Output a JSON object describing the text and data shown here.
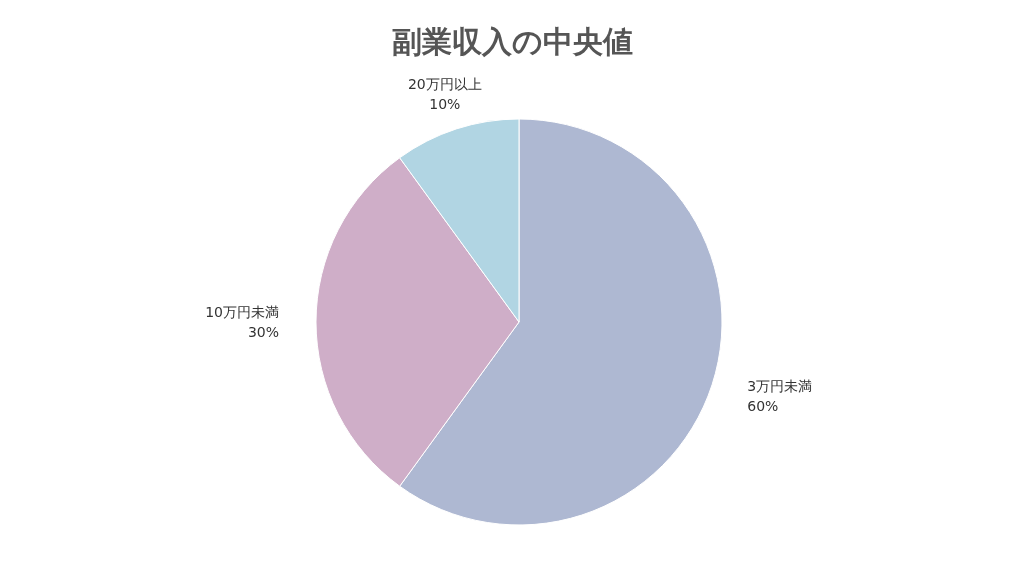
{
  "chart_data": {
    "type": "pie",
    "title": "副業収入の中央値",
    "categories": [
      "3万円未満",
      "10万円未満",
      "20万円以上"
    ],
    "values": [
      60,
      30,
      10
    ],
    "colors": [
      "#aeb8d2",
      "#cfaec8",
      "#b1d5e3"
    ],
    "value_labels": [
      "60%",
      "30%",
      "10%"
    ],
    "legend": false
  }
}
